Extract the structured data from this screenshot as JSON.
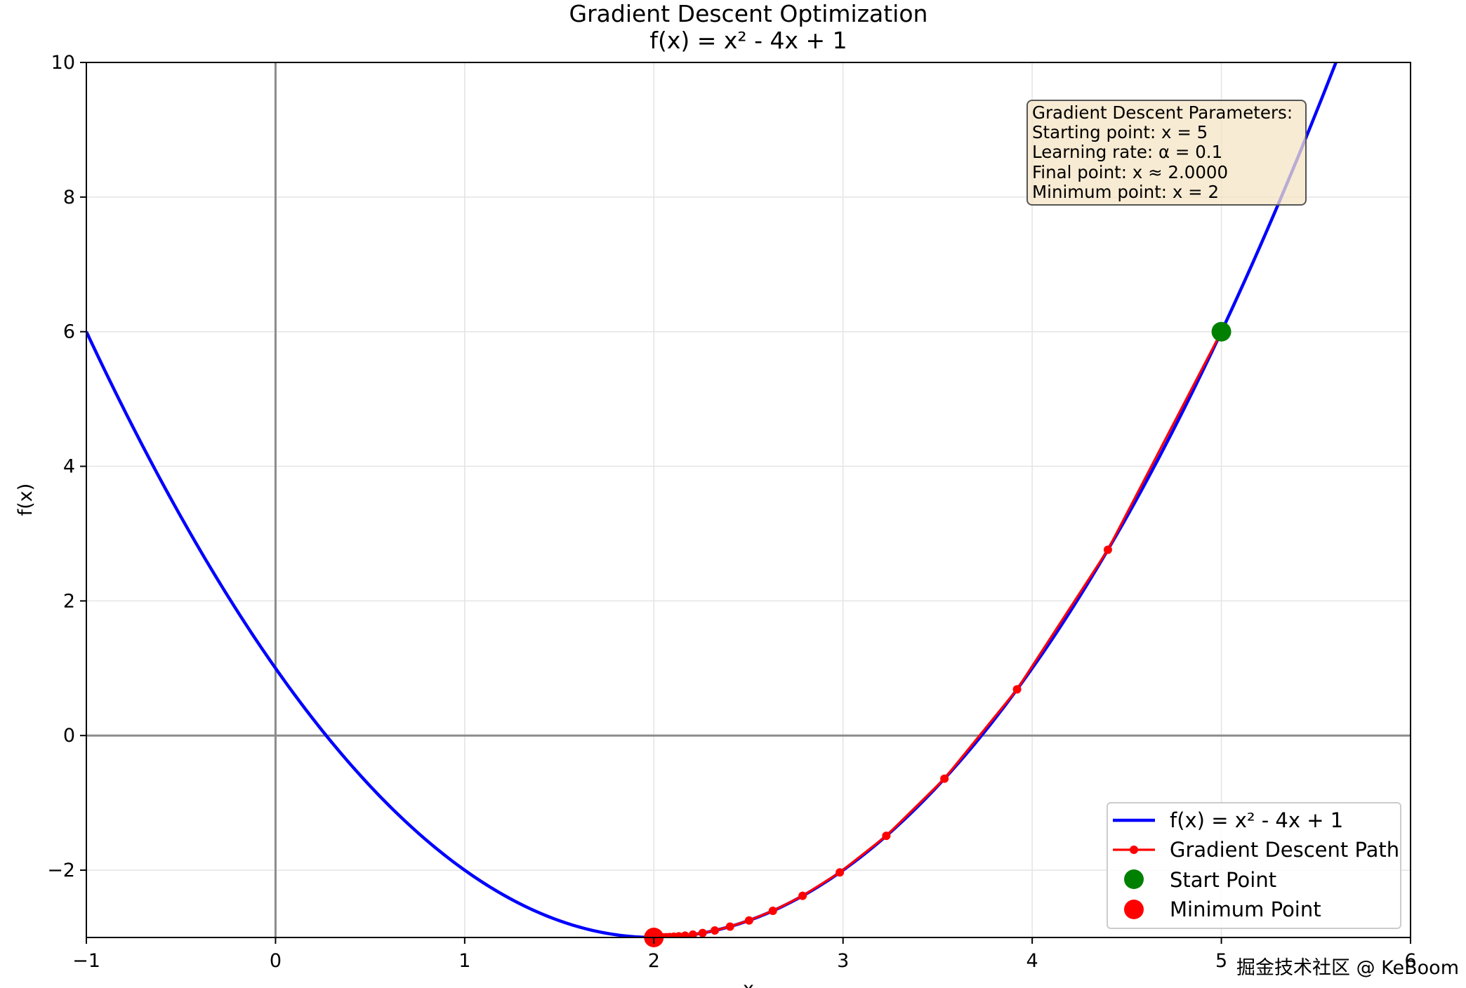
{
  "chart_data": {
    "type": "line",
    "title": "Gradient Descent Optimization",
    "subtitle": "f(x) = x² - 4x + 1",
    "xlabel": "x",
    "ylabel": "f(x)",
    "xlim": [
      -1,
      6
    ],
    "ylim": [
      -3,
      10
    ],
    "x_ticks": [
      -1,
      0,
      1,
      2,
      3,
      4,
      5,
      6
    ],
    "y_ticks": [
      -2,
      0,
      2,
      4,
      6,
      8,
      10
    ],
    "x_tick_labels": [
      "−1",
      "0",
      "1",
      "2",
      "3",
      "4",
      "5",
      "6"
    ],
    "y_tick_labels": [
      "−2",
      "0",
      "2",
      "4",
      "6",
      "8",
      "10"
    ],
    "grid": true,
    "reference_lines": {
      "x": 0,
      "y": 0
    },
    "legend_position": "lower-right",
    "series": [
      {
        "name": "f(x) = x² - 4x + 1",
        "kind": "curve",
        "color": "#0000ff",
        "function": {
          "a": 1,
          "b": -4,
          "c": 1
        },
        "x_range": [
          -1,
          6
        ]
      },
      {
        "name": "Gradient Descent Path",
        "kind": "line-markers",
        "color": "#ff0000",
        "x": [
          5,
          4.4,
          3.92,
          3.536,
          3.2288,
          2.983,
          2.7864,
          2.6291,
          2.5033,
          2.4027,
          2.3221,
          2.2577,
          2.2062,
          2.1649,
          2.1319,
          2.1056,
          2.0844,
          2.0676,
          2.054,
          2.0432,
          2.0346,
          2.0277,
          2.0221,
          2.0177,
          2.0142,
          2.0113,
          2.0091,
          2.0073,
          2.0058,
          2.0046,
          2.0037,
          2.003,
          2.0024,
          2.0019,
          2.0015,
          2.0012,
          2.001,
          2.0008,
          2.0006,
          2.0005,
          2.0004,
          2.0003,
          2.0003,
          2.0002,
          2.0002,
          2.0001,
          2.0001,
          2.0001,
          2.0001,
          2.0001,
          2.0
        ],
        "y": [
          6,
          2.76,
          0.6864,
          -0.6407,
          -1.49,
          -2.0336,
          -2.3815,
          -2.6042,
          -2.7467,
          -2.8379,
          -2.8963,
          -2.9336,
          -2.9575,
          -2.9728,
          -2.9826,
          -2.9889,
          -2.9929,
          -2.9955,
          -2.9971,
          -2.9981,
          -2.9988,
          -2.9992,
          -2.9995,
          -2.9997,
          -2.9998,
          -2.9999,
          -2.9999,
          -2.9999,
          -3.0,
          -3.0,
          -3.0,
          -3.0,
          -3.0,
          -3.0,
          -3.0,
          -3.0,
          -3.0,
          -3.0,
          -3.0,
          -3.0,
          -3.0,
          -3.0,
          -3.0,
          -3.0,
          -3.0,
          -3.0,
          -3.0,
          -3.0,
          -3.0,
          -3.0,
          -3.0
        ]
      },
      {
        "name": "Start Point",
        "kind": "point",
        "color": "#008000",
        "x": [
          5
        ],
        "y": [
          6
        ]
      },
      {
        "name": "Minimum Point",
        "kind": "point",
        "color": "#ff0000",
        "x": [
          2
        ],
        "y": [
          -3
        ]
      }
    ],
    "annotation_box": {
      "lines": [
        "Gradient Descent Parameters:",
        "Starting point: x = 5",
        "Learning rate: α = 0.1",
        "Final point: x ≈ 2.0000",
        "Minimum point: x = 2"
      ]
    }
  },
  "watermark": "掘金技术社区 @ KeBoom"
}
